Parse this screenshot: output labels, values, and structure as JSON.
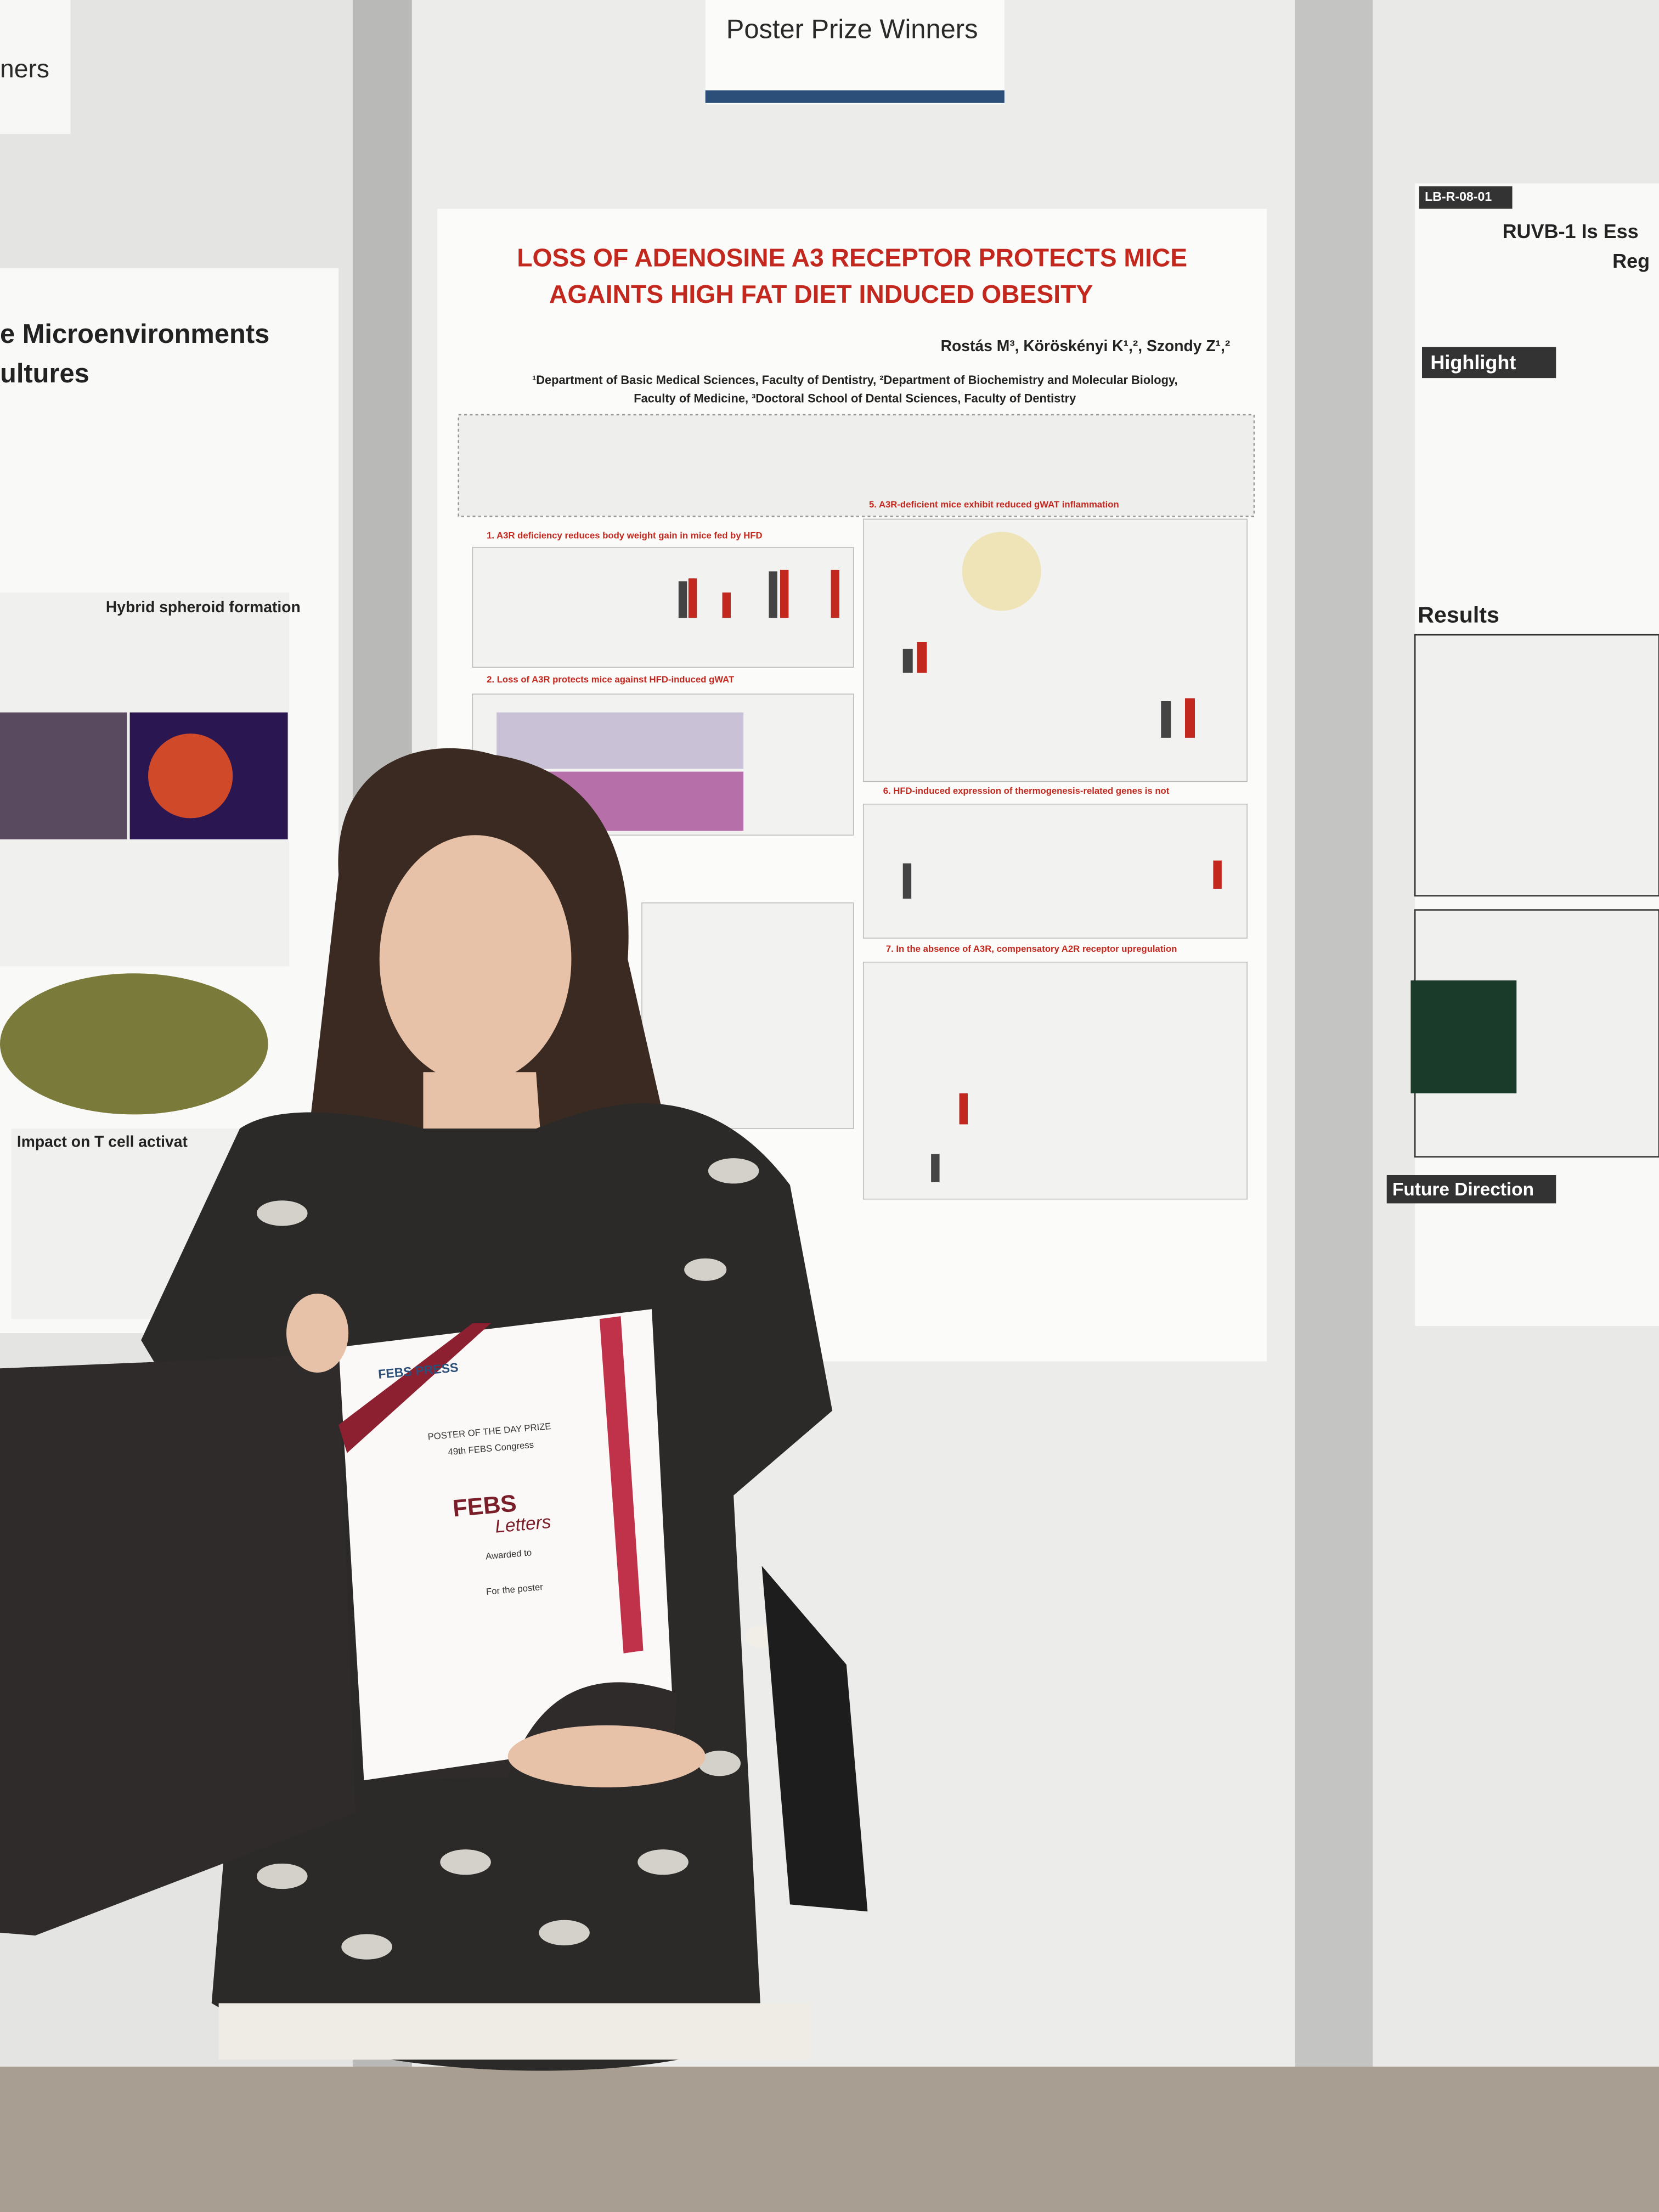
{
  "signs": {
    "prize_banner": "Poster Prize Winners",
    "left_edge": "ners"
  },
  "center_poster": {
    "title_lines": [
      "LOSS OF ADENOSINE A3 RECEPTOR PROTECTS MICE",
      "AGAINTS HIGH FAT DIET INDUCED OBESITY"
    ],
    "authors": "Rostás M³, Köröskényi K¹,², Szondy Z¹,²",
    "affiliations": [
      "¹Department of Basic Medical Sciences, Faculty of Dentistry, ²Department of Biochemistry and Molecular Biology,",
      "Faculty of Medicine, ³Doctoral School of Dental Sciences, Faculty of Dentistry"
    ],
    "sections": [
      "1. A3R deficiency reduces body weight gain in mice fed by HFD",
      "2. Loss of A3R protects mice against HFD-induced gWAT",
      "5. A3R-deficient mice exhibit reduced gWAT inflammation",
      "6. HFD-induced expression of thermogenesis-related genes is not",
      "7. In the absence of A3R, compensatory A2R receptor upregulation"
    ]
  },
  "left_poster": {
    "title_lines": [
      "e Microenvironments",
      "ultures"
    ],
    "headings": [
      "Hybrid spheroid formation",
      "Impact on T cell activat"
    ]
  },
  "right_poster": {
    "code": "LB-R-08-01",
    "title_lines": [
      "RUVB-1 Is Ess",
      "Reg"
    ],
    "headings": [
      "Highlight",
      "Results",
      "Future Direction"
    ]
  },
  "certificate": {
    "publisher": "FEBS PRESS",
    "prize": "POSTER OF THE DAY PRIZE",
    "congress": "49th FEBS Congress",
    "journal": [
      "FEBS",
      "Letters"
    ],
    "awarded": "Awarded to",
    "for_poster": "For the poster"
  }
}
